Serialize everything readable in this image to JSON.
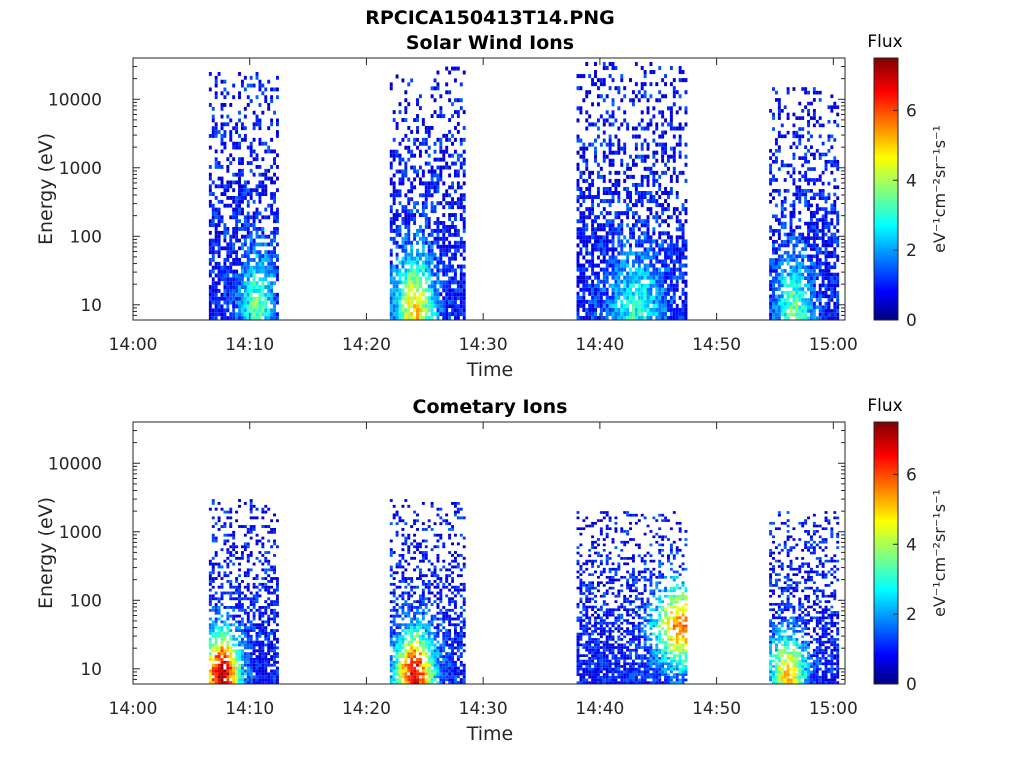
{
  "figure": {
    "title": "RPCICA150413T14.PNG"
  },
  "chart_data": [
    {
      "type": "heatmap",
      "title": "Solar Wind Ions",
      "xlabel": "Time",
      "ylabel": "Energy (eV)",
      "y_scale": "log",
      "xlim_minutes": [
        0,
        61
      ],
      "ylim": [
        6,
        40000
      ],
      "x_ticks": [
        {
          "value": 0,
          "label": "14:00"
        },
        {
          "value": 10,
          "label": "14:10"
        },
        {
          "value": 20,
          "label": "14:20"
        },
        {
          "value": 30,
          "label": "14:30"
        },
        {
          "value": 40,
          "label": "14:40"
        },
        {
          "value": 50,
          "label": "14:50"
        },
        {
          "value": 60,
          "label": "15:00"
        }
      ],
      "y_ticks": [
        {
          "value": 10,
          "label": "10"
        },
        {
          "value": 100,
          "label": "100"
        },
        {
          "value": 1000,
          "label": "1000"
        },
        {
          "value": 10000,
          "label": "10000"
        }
      ],
      "colorbar": {
        "title": "Flux",
        "label": "eV⁻¹cm⁻²sr⁻¹s⁻¹",
        "range": [
          0,
          7.5
        ],
        "ticks": [
          "0",
          "2",
          "4",
          "6"
        ],
        "colormap": "jet"
      },
      "bursts": [
        {
          "start_min": 6.5,
          "end_min": 12.5,
          "min_energy": 6,
          "max_energy": 25000,
          "peak_min": 10.5,
          "peak_energy": 8,
          "peak_flux": 3.5
        },
        {
          "start_min": 22.0,
          "end_min": 28.5,
          "min_energy": 6,
          "max_energy": 30000,
          "peak_min": 24.0,
          "peak_energy": 7,
          "peak_flux": 5.0
        },
        {
          "start_min": 38.0,
          "end_min": 47.5,
          "min_energy": 6,
          "max_energy": 35000,
          "peak_min": 43.0,
          "peak_energy": 8,
          "peak_flux": 3.0
        },
        {
          "start_min": 54.5,
          "end_min": 60.5,
          "min_energy": 6,
          "max_energy": 15000,
          "peak_min": 56.5,
          "peak_energy": 8,
          "peak_flux": 3.5
        }
      ]
    },
    {
      "type": "heatmap",
      "title": "Cometary Ions",
      "xlabel": "Time",
      "ylabel": "Energy (eV)",
      "y_scale": "log",
      "xlim_minutes": [
        0,
        61
      ],
      "ylim": [
        6,
        40000
      ],
      "x_ticks": [
        {
          "value": 0,
          "label": "14:00"
        },
        {
          "value": 10,
          "label": "14:10"
        },
        {
          "value": 20,
          "label": "14:20"
        },
        {
          "value": 30,
          "label": "14:30"
        },
        {
          "value": 40,
          "label": "14:40"
        },
        {
          "value": 50,
          "label": "14:50"
        },
        {
          "value": 60,
          "label": "15:00"
        }
      ],
      "y_ticks": [
        {
          "value": 10,
          "label": "10"
        },
        {
          "value": 100,
          "label": "100"
        },
        {
          "value": 1000,
          "label": "1000"
        },
        {
          "value": 10000,
          "label": "10000"
        }
      ],
      "colorbar": {
        "title": "Flux",
        "label": "eV⁻¹cm⁻²sr⁻¹s⁻¹",
        "range": [
          0,
          7.5
        ],
        "ticks": [
          "0",
          "2",
          "4",
          "6"
        ],
        "colormap": "jet"
      },
      "bursts": [
        {
          "start_min": 6.5,
          "end_min": 12.5,
          "min_energy": 6,
          "max_energy": 3000,
          "peak_min": 7.5,
          "peak_energy": 8,
          "peak_flux": 7.2
        },
        {
          "start_min": 22.0,
          "end_min": 28.5,
          "min_energy": 6,
          "max_energy": 3000,
          "peak_min": 24.0,
          "peak_energy": 8,
          "peak_flux": 6.8
        },
        {
          "start_min": 38.0,
          "end_min": 47.5,
          "min_energy": 6,
          "max_energy": 2000,
          "peak_min": 47.0,
          "peak_energy": 40,
          "peak_flux": 5.8
        },
        {
          "start_min": 54.5,
          "end_min": 60.5,
          "min_energy": 6,
          "max_energy": 2000,
          "peak_min": 56.0,
          "peak_energy": 8,
          "peak_flux": 5.0
        }
      ]
    }
  ]
}
